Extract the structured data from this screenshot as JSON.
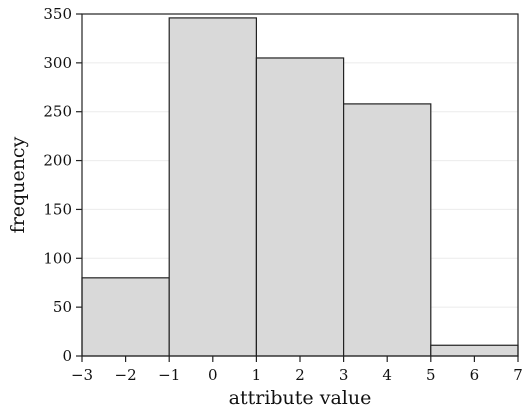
{
  "chart_data": {
    "type": "bar",
    "bins": [
      {
        "x0": -3,
        "x1": -1,
        "count": 80
      },
      {
        "x0": -1,
        "x1": 1,
        "count": 346
      },
      {
        "x0": 1,
        "x1": 3,
        "count": 305
      },
      {
        "x0": 3,
        "x1": 5,
        "count": 258
      },
      {
        "x0": 5,
        "x1": 7,
        "count": 11
      }
    ],
    "xlabel": "attribute value",
    "ylabel": "frequency",
    "xlim": [
      -3,
      7
    ],
    "ylim": [
      0,
      350
    ],
    "x_ticks": [
      -3,
      -2,
      -1,
      0,
      1,
      2,
      3,
      4,
      5,
      6,
      7
    ],
    "x_tick_labels": [
      "−3",
      "−2",
      "−1",
      "0",
      "1",
      "2",
      "3",
      "4",
      "5",
      "6",
      "7"
    ],
    "y_ticks": [
      0,
      50,
      100,
      150,
      200,
      250,
      300,
      350
    ],
    "y_tick_labels": [
      "0",
      "50",
      "100",
      "150",
      "200",
      "250",
      "300",
      "350"
    ],
    "grid": "horizontal",
    "colors": {
      "bar_fill": "#d9d9d9",
      "bar_stroke": "#222222",
      "grid": "#ebebeb",
      "axis": "#222222"
    }
  }
}
